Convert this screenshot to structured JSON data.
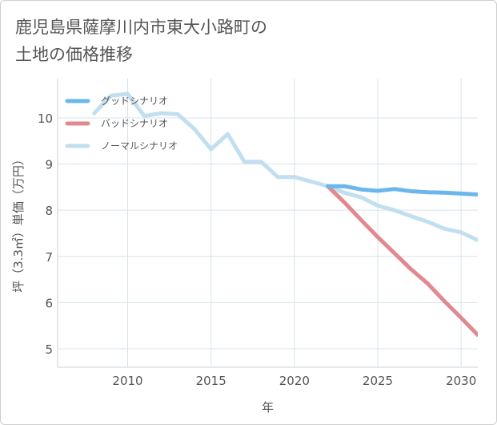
{
  "title_lines": [
    "鹿児島県薩摩川内市東大小路町の",
    "土地の価格推移"
  ],
  "chart_data": {
    "type": "line",
    "xlabel": "年",
    "ylabel": "坪（3.3㎡）単価（万円）",
    "xlim": [
      2005.8,
      2031
    ],
    "ylim": [
      4.6,
      10.85
    ],
    "xticks": [
      2010,
      2015,
      2020,
      2025,
      2030
    ],
    "yticks": [
      5,
      6,
      7,
      8,
      9,
      10
    ],
    "grid": true,
    "legend_position": "top-left",
    "series": [
      {
        "name": "グッドシナリオ",
        "color": "#6ab7ee",
        "x": [
          2022,
          2023,
          2024,
          2025,
          2026,
          2027,
          2028,
          2029,
          2030,
          2031
        ],
        "y": [
          8.52,
          8.52,
          8.45,
          8.42,
          8.46,
          8.41,
          8.39,
          8.38,
          8.36,
          8.34
        ]
      },
      {
        "name": "バッドシナリオ",
        "color": "#e08a90",
        "x": [
          2022,
          2023,
          2024,
          2025,
          2026,
          2027,
          2028,
          2029,
          2030,
          2031
        ],
        "y": [
          8.52,
          8.17,
          7.79,
          7.42,
          7.07,
          6.72,
          6.41,
          6.03,
          5.67,
          5.3
        ]
      },
      {
        "name": "ノーマルシナリオ",
        "color": "#c2dfef",
        "x": [
          2008,
          2009,
          2010,
          2011,
          2012,
          2013,
          2014,
          2015,
          2016,
          2017,
          2018,
          2019,
          2020,
          2021,
          2022,
          2023,
          2024,
          2025,
          2026,
          2027,
          2028,
          2029,
          2030,
          2031
        ],
        "y": [
          10.1,
          10.48,
          10.52,
          10.04,
          10.1,
          10.08,
          9.76,
          9.32,
          9.65,
          9.05,
          9.05,
          8.72,
          8.72,
          8.62,
          8.52,
          8.38,
          8.28,
          8.1,
          8.0,
          7.87,
          7.75,
          7.6,
          7.52,
          7.35
        ]
      }
    ]
  }
}
